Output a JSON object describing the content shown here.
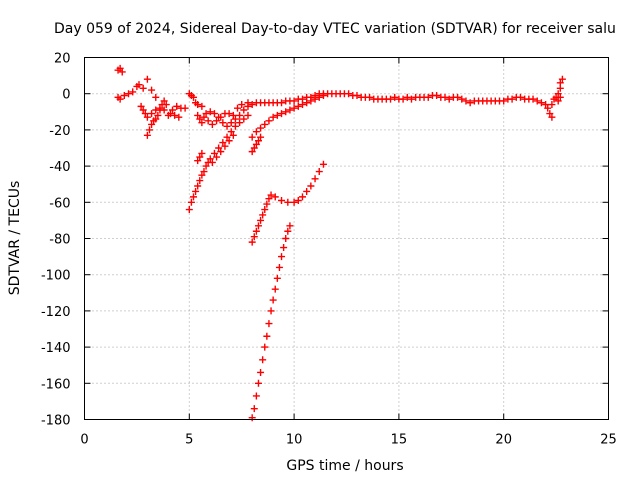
{
  "chart_data": {
    "type": "scatter",
    "title": "Day 059 of 2024, Sidereal Day-to-day VTEC variation (SDTVAR) for receiver salu",
    "xlabel": "GPS time / hours",
    "ylabel": "SDTVAR / TECUs",
    "xlim": [
      0,
      25
    ],
    "ylim": [
      -180,
      20
    ],
    "x_ticks": [
      "0",
      "5",
      "10",
      "15",
      "20",
      "25"
    ],
    "y_ticks": [
      "20",
      "0",
      "-20",
      "-40",
      "-60",
      "-80",
      "-100",
      "-120",
      "-140",
      "-160",
      "-180"
    ],
    "grid": true,
    "marker": "plus",
    "color": "#ff0000",
    "series": [
      {
        "points": [
          [
            1.6,
            13
          ],
          [
            1.7,
            14
          ],
          [
            1.8,
            12
          ],
          [
            1.6,
            -2
          ],
          [
            1.7,
            -3
          ],
          [
            1.9,
            -1
          ],
          [
            2.1,
            0
          ],
          [
            2.3,
            1
          ],
          [
            2.5,
            4
          ],
          [
            2.6,
            5
          ],
          [
            2.8,
            3
          ],
          [
            3.0,
            8
          ],
          [
            3.2,
            2
          ],
          [
            3.4,
            -2
          ],
          [
            2.7,
            -7
          ],
          [
            2.8,
            -9
          ],
          [
            2.9,
            -11
          ],
          [
            3.0,
            -13
          ],
          [
            3.2,
            -11
          ],
          [
            3.4,
            -9
          ],
          [
            3.6,
            -8
          ],
          [
            3.8,
            -9
          ],
          [
            4.0,
            -12
          ],
          [
            4.2,
            -9
          ],
          [
            4.4,
            -7
          ],
          [
            4.6,
            -8
          ],
          [
            4.8,
            -8
          ],
          [
            3.0,
            -23
          ],
          [
            3.1,
            -20
          ],
          [
            3.2,
            -17
          ],
          [
            3.3,
            -15
          ],
          [
            3.4,
            -14
          ],
          [
            3.5,
            -12
          ],
          [
            3.6,
            -9
          ],
          [
            3.7,
            -6
          ],
          [
            3.8,
            -4
          ],
          [
            3.9,
            -6
          ],
          [
            4.1,
            -11
          ],
          [
            4.3,
            -12
          ],
          [
            4.5,
            -13
          ],
          [
            5.0,
            0
          ],
          [
            5.1,
            -1
          ],
          [
            5.2,
            -2
          ],
          [
            5.3,
            -5
          ],
          [
            5.4,
            -6
          ],
          [
            5.6,
            -7
          ],
          [
            5.8,
            -11
          ],
          [
            5.4,
            -12
          ],
          [
            5.5,
            -14
          ],
          [
            5.6,
            -16
          ],
          [
            5.7,
            -13
          ],
          [
            5.9,
            -15
          ],
          [
            6.1,
            -17
          ],
          [
            6.3,
            -15
          ],
          [
            6.5,
            -13
          ],
          [
            6.7,
            -11
          ],
          [
            6.9,
            -11
          ],
          [
            7.1,
            -12
          ],
          [
            7.3,
            -8
          ],
          [
            7.5,
            -6
          ],
          [
            7.8,
            -5
          ],
          [
            6.0,
            -10
          ],
          [
            6.2,
            -11
          ],
          [
            6.4,
            -13
          ],
          [
            6.6,
            -16
          ],
          [
            6.8,
            -18
          ],
          [
            7.0,
            -16
          ],
          [
            7.2,
            -14
          ],
          [
            7.4,
            -12
          ],
          [
            7.6,
            -9
          ],
          [
            7.8,
            -7
          ],
          [
            8.0,
            -6
          ],
          [
            5.0,
            -64
          ],
          [
            5.1,
            -60
          ],
          [
            5.2,
            -57
          ],
          [
            5.3,
            -54
          ],
          [
            5.4,
            -51
          ],
          [
            5.5,
            -48
          ],
          [
            5.6,
            -45
          ],
          [
            5.7,
            -43
          ],
          [
            5.8,
            -40
          ],
          [
            5.9,
            -38
          ],
          [
            6.0,
            -36
          ],
          [
            6.2,
            -33
          ],
          [
            6.4,
            -30
          ],
          [
            6.6,
            -27
          ],
          [
            6.8,
            -24
          ],
          [
            7.0,
            -21
          ],
          [
            7.2,
            -18
          ],
          [
            7.4,
            -16
          ],
          [
            7.6,
            -14
          ],
          [
            7.8,
            -12
          ],
          [
            5.4,
            -37
          ],
          [
            5.5,
            -35
          ],
          [
            5.6,
            -33
          ],
          [
            6.1,
            -38
          ],
          [
            6.3,
            -35
          ],
          [
            6.5,
            -32
          ],
          [
            6.7,
            -29
          ],
          [
            6.9,
            -26
          ],
          [
            7.1,
            -23
          ],
          [
            8.0,
            -32
          ],
          [
            8.1,
            -30
          ],
          [
            8.2,
            -28
          ],
          [
            8.3,
            -26
          ],
          [
            8.4,
            -24
          ],
          [
            8.0,
            -24
          ],
          [
            8.2,
            -21
          ],
          [
            8.4,
            -19
          ],
          [
            8.6,
            -17
          ],
          [
            8.8,
            -15
          ],
          [
            9.0,
            -13
          ],
          [
            9.2,
            -12
          ],
          [
            9.4,
            -11
          ],
          [
            9.6,
            -10
          ],
          [
            9.8,
            -9
          ],
          [
            10.0,
            -8
          ],
          [
            10.2,
            -7
          ],
          [
            10.4,
            -6
          ],
          [
            10.6,
            -5
          ],
          [
            10.8,
            -4
          ],
          [
            11.0,
            -3
          ],
          [
            11.2,
            -2
          ],
          [
            11.4,
            -1
          ],
          [
            8.2,
            -5
          ],
          [
            8.4,
            -5
          ],
          [
            8.6,
            -5
          ],
          [
            8.8,
            -5
          ],
          [
            9.0,
            -5
          ],
          [
            9.2,
            -5
          ],
          [
            9.4,
            -5
          ],
          [
            9.6,
            -4
          ],
          [
            9.8,
            -4
          ],
          [
            10.0,
            -4
          ],
          [
            10.2,
            -3
          ],
          [
            10.4,
            -3
          ],
          [
            10.6,
            -2
          ],
          [
            10.8,
            -2
          ],
          [
            11.0,
            -1
          ],
          [
            11.2,
            0
          ],
          [
            11.4,
            0
          ],
          [
            11.6,
            0
          ],
          [
            11.8,
            0
          ],
          [
            12.0,
            0
          ],
          [
            12.2,
            0
          ],
          [
            12.4,
            0
          ],
          [
            12.6,
            0
          ],
          [
            12.8,
            -1
          ],
          [
            13.0,
            -1
          ],
          [
            13.2,
            -2
          ],
          [
            13.4,
            -2
          ],
          [
            13.6,
            -2
          ],
          [
            13.8,
            -3
          ],
          [
            14.0,
            -3
          ],
          [
            14.2,
            -3
          ],
          [
            14.4,
            -3
          ],
          [
            14.6,
            -3
          ],
          [
            14.8,
            -2
          ],
          [
            15.0,
            -3
          ],
          [
            15.2,
            -3
          ],
          [
            15.4,
            -2
          ],
          [
            15.6,
            -3
          ],
          [
            15.8,
            -2
          ],
          [
            16.0,
            -2
          ],
          [
            16.2,
            -2
          ],
          [
            16.4,
            -2
          ],
          [
            16.6,
            -1
          ],
          [
            16.8,
            -1
          ],
          [
            17.0,
            -2
          ],
          [
            17.2,
            -2
          ],
          [
            17.4,
            -3
          ],
          [
            17.6,
            -2
          ],
          [
            17.8,
            -2
          ],
          [
            18.0,
            -3
          ],
          [
            18.2,
            -4
          ],
          [
            18.4,
            -5
          ],
          [
            18.6,
            -4
          ],
          [
            18.8,
            -4
          ],
          [
            19.0,
            -4
          ],
          [
            19.2,
            -4
          ],
          [
            19.4,
            -4
          ],
          [
            19.6,
            -4
          ],
          [
            19.8,
            -4
          ],
          [
            20.0,
            -4
          ],
          [
            20.2,
            -3
          ],
          [
            20.4,
            -3
          ],
          [
            20.6,
            -2
          ],
          [
            20.8,
            -2
          ],
          [
            21.0,
            -3
          ],
          [
            21.2,
            -3
          ],
          [
            21.4,
            -3
          ],
          [
            21.6,
            -4
          ],
          [
            21.8,
            -5
          ],
          [
            22.0,
            -6
          ],
          [
            22.1,
            -8
          ],
          [
            22.2,
            -11
          ],
          [
            22.3,
            -13
          ],
          [
            22.3,
            -6
          ],
          [
            22.4,
            -3
          ],
          [
            22.5,
            -2
          ],
          [
            22.6,
            0
          ],
          [
            22.7,
            3
          ],
          [
            22.7,
            6
          ],
          [
            22.8,
            8
          ],
          [
            22.7,
            -2
          ],
          [
            22.6,
            -4
          ],
          [
            8.0,
            -82
          ],
          [
            8.1,
            -79
          ],
          [
            8.2,
            -76
          ],
          [
            8.3,
            -73
          ],
          [
            8.4,
            -70
          ],
          [
            8.5,
            -67
          ],
          [
            8.6,
            -64
          ],
          [
            8.7,
            -61
          ],
          [
            8.8,
            -58
          ],
          [
            8.9,
            -56
          ],
          [
            9.1,
            -57
          ],
          [
            9.4,
            -59
          ],
          [
            9.7,
            -60
          ],
          [
            10.0,
            -60
          ],
          [
            10.2,
            -59
          ],
          [
            10.4,
            -57
          ],
          [
            10.6,
            -54
          ],
          [
            10.8,
            -51
          ],
          [
            11.0,
            -47
          ],
          [
            11.2,
            -43
          ],
          [
            11.4,
            -39
          ],
          [
            8.0,
            -179
          ],
          [
            8.1,
            -174
          ],
          [
            8.2,
            -167
          ],
          [
            8.3,
            -160
          ],
          [
            8.4,
            -154
          ],
          [
            8.5,
            -147
          ],
          [
            8.6,
            -140
          ],
          [
            8.7,
            -134
          ],
          [
            8.8,
            -127
          ],
          [
            8.9,
            -120
          ],
          [
            9.0,
            -114
          ],
          [
            9.1,
            -108
          ],
          [
            9.2,
            -102
          ],
          [
            9.3,
            -96
          ],
          [
            9.4,
            -90
          ],
          [
            9.5,
            -85
          ],
          [
            9.6,
            -80
          ],
          [
            9.7,
            -76
          ],
          [
            9.8,
            -73
          ]
        ]
      }
    ]
  }
}
